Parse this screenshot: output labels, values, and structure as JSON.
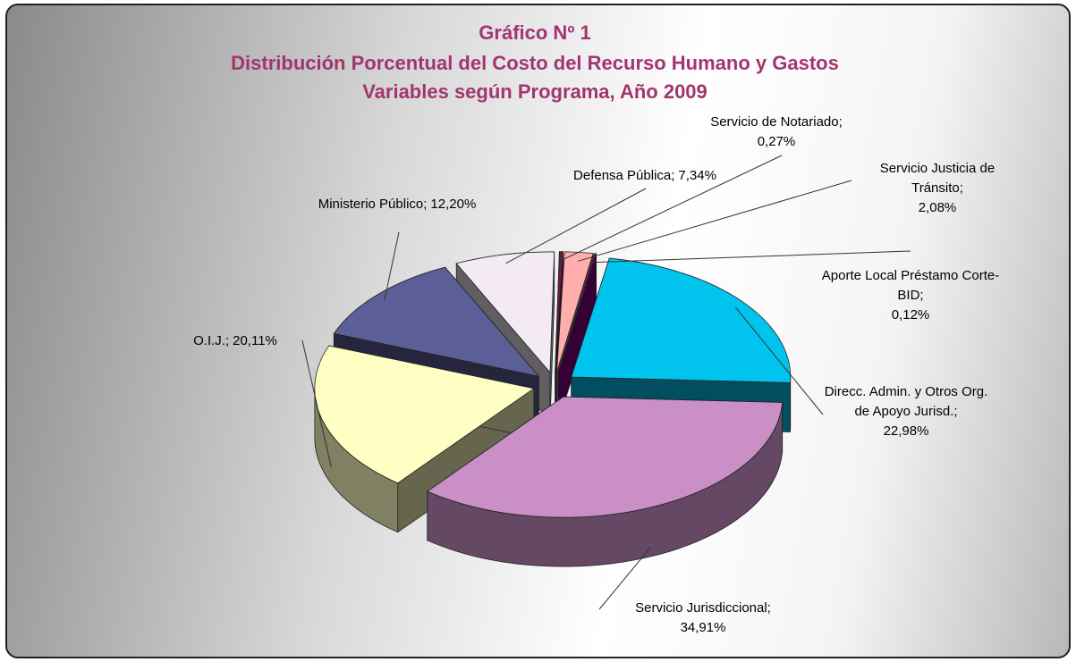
{
  "chart_data": {
    "type": "pie3d",
    "title": [
      "Gráfico Nº 1",
      "Distribución Porcentual del Costo del Recurso Humano y Gastos",
      "Variables según Programa, Año 2009"
    ],
    "categories": [
      "Direcc. Admin. y Otros Org. de Apoyo Jurisd.;",
      "Servicio Jurisdiccional;",
      "O.I.J.;",
      "Ministerio Público;",
      "Defensa Pública;",
      "Servicio de Notariado;",
      "Servicio Justicia de Tránsito;",
      "Aporte Local Préstamo Corte-BID;"
    ],
    "values": [
      22.98,
      34.91,
      20.11,
      12.2,
      7.34,
      0.27,
      2.08,
      0.12
    ],
    "value_labels": [
      "22,98%",
      "34,91%",
      "20,11%",
      "12,20%",
      "7,34%",
      "0,27%",
      "2,08%",
      "0,12%"
    ],
    "colors": [
      "#00c4ee",
      "#c98fc6",
      "#ffffc4",
      "#5c5e98",
      "#f3eaf4",
      "#6a1d45",
      "#ffadad",
      "#850085"
    ],
    "start_angle": -80,
    "exploded": true
  }
}
